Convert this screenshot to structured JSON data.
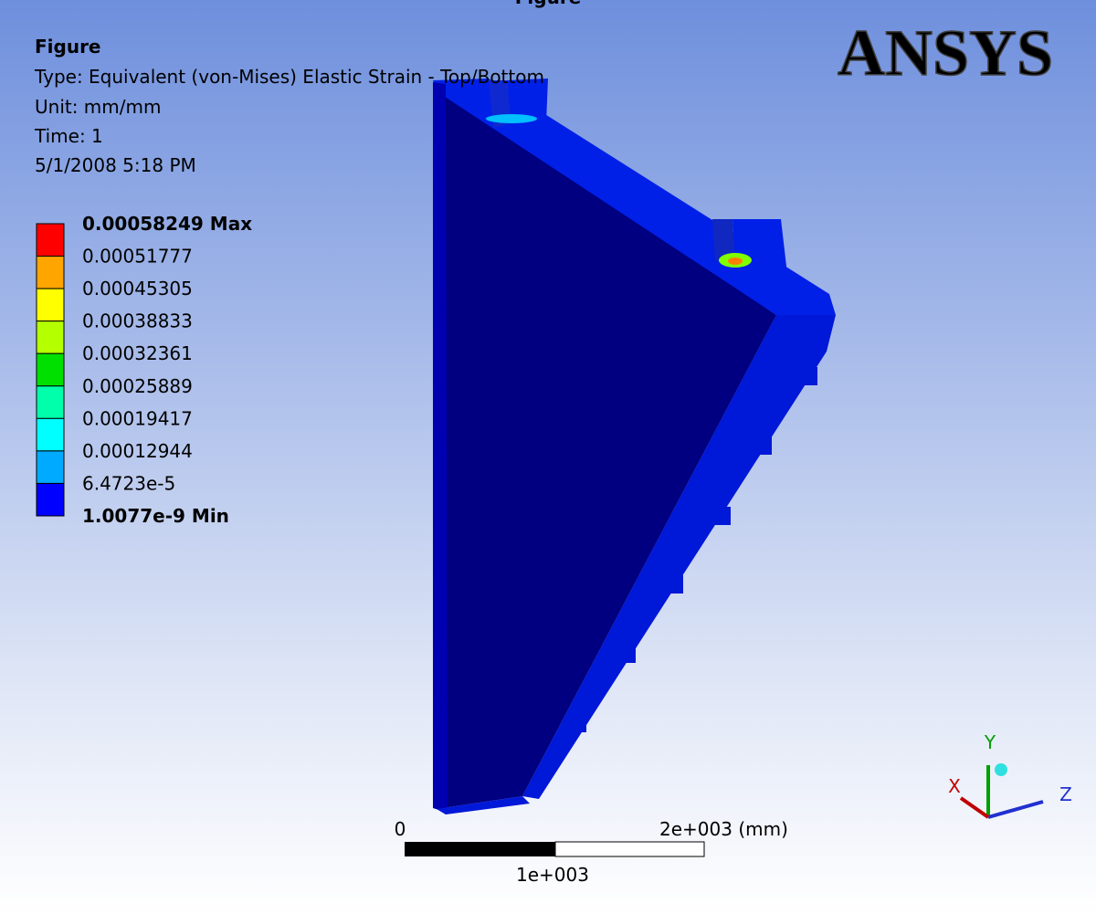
{
  "header": {
    "title": "Figure"
  },
  "info": {
    "title": "Figure",
    "type": "Type: Equivalent (von-Mises) Elastic Strain - Top/Bottom",
    "unit": "Unit: mm/mm",
    "time": "Time: 1",
    "date": "5/1/2008 5:18 PM"
  },
  "legend": {
    "labels": [
      "0.00058249 Max",
      "0.00051777",
      "0.00045305",
      "0.00038833",
      "0.00032361",
      "0.00025889",
      "0.00019417",
      "0.00012944",
      "6.4723e-5",
      "1.0077e-9 Min"
    ],
    "colors": [
      "#ff0000",
      "#ffa500",
      "#ffff00",
      "#b4ff00",
      "#00e000",
      "#00ffaa",
      "#00ffff",
      "#00aaff",
      "#0000ff"
    ]
  },
  "scale_bar": {
    "start": "0",
    "end": "2e+003 (mm)",
    "mid": "1e+003"
  },
  "triad": {
    "x": "X",
    "y": "Y",
    "z": "Z"
  },
  "logo": "ANSYS"
}
